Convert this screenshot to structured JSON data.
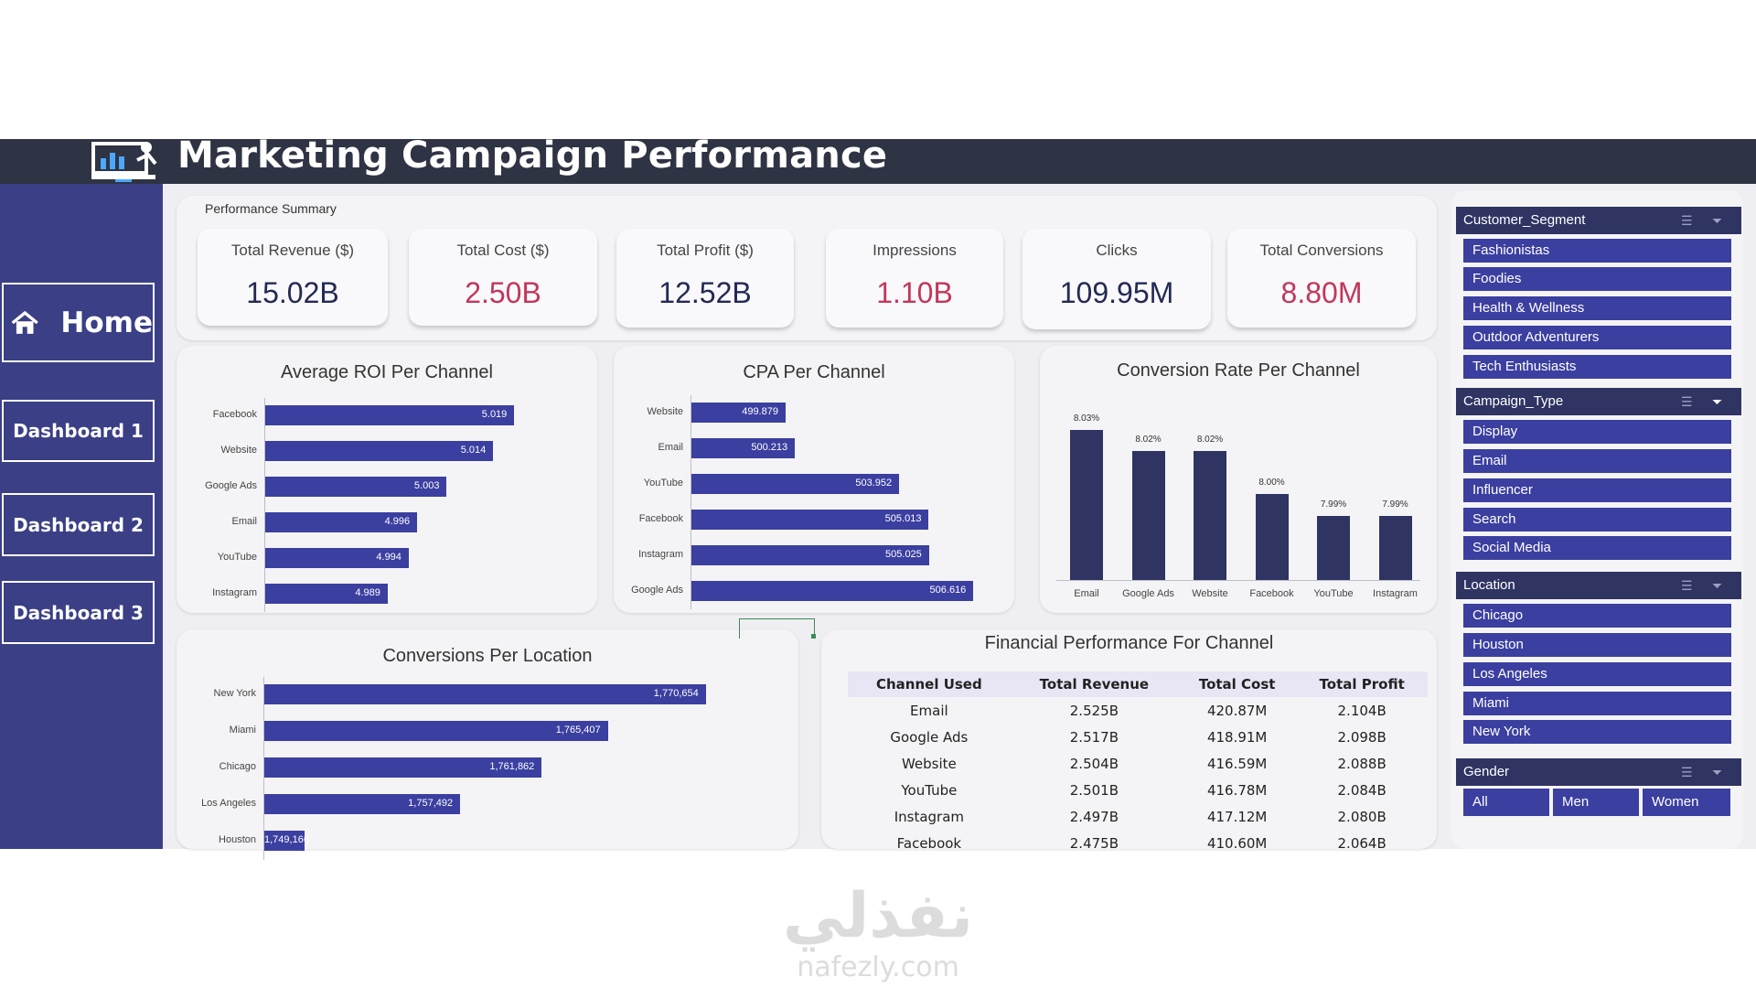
{
  "header": {
    "title": "Marketing Campaign Performance"
  },
  "nav": {
    "home": "Home",
    "dashboard1": "Dashboard 1",
    "dashboard2": "Dashboard 2",
    "dashboard3": "Dashboard 3"
  },
  "summary": {
    "title": "Performance Summary",
    "kpis": [
      {
        "label": "Total Revenue ($)",
        "value": "15.02B"
      },
      {
        "label": "Total Cost ($)",
        "value": "2.50B"
      },
      {
        "label": "Total Profit ($)",
        "value": "12.52B"
      },
      {
        "label": "Impressions",
        "value": "1.10B"
      },
      {
        "label": "Clicks",
        "value": "109.95M"
      },
      {
        "label": "Total Conversions",
        "value": "8.80M"
      }
    ]
  },
  "colors": {
    "bar": "#3b3fa0",
    "bar_dark": "#2f3463",
    "header": "#2f3444",
    "sidebar": "#3a3f86",
    "red": "#c2375a"
  },
  "chart_data": [
    {
      "type": "bar",
      "orientation": "horizontal",
      "title": "Average ROI Per Channel",
      "categories": [
        "Facebook",
        "Website",
        "Google Ads",
        "Email",
        "YouTube",
        "Instagram"
      ],
      "values": [
        5.019,
        5.014,
        5.003,
        4.996,
        4.994,
        4.989
      ],
      "labels": [
        "5.019",
        "5.014",
        "5.003",
        "4.996",
        "4.994",
        "4.989"
      ],
      "xlim": [
        4.96,
        5.025
      ]
    },
    {
      "type": "bar",
      "orientation": "horizontal",
      "title": "CPA Per Channel",
      "categories": [
        "Website",
        "Email",
        "YouTube",
        "Facebook",
        "Instagram",
        "Google Ads"
      ],
      "values": [
        499.879,
        500.213,
        503.952,
        505.013,
        505.025,
        506.616
      ],
      "labels": [
        "499.879",
        "500.213",
        "503.952",
        "505.013",
        "505.025",
        "506.616"
      ],
      "xlim": [
        496.5,
        507
      ]
    },
    {
      "type": "bar",
      "orientation": "vertical",
      "title": "Conversion Rate Per Channel",
      "categories": [
        "Email",
        "Google Ads",
        "Website",
        "Facebook",
        "YouTube",
        "Instagram"
      ],
      "values": [
        8.03,
        8.02,
        8.02,
        8.0,
        7.99,
        7.99
      ],
      "labels": [
        "8.03%",
        "8.02%",
        "8.02%",
        "8.00%",
        "7.99%",
        "7.99%"
      ],
      "ylim": [
        7.96,
        8.035
      ]
    },
    {
      "type": "bar",
      "orientation": "horizontal",
      "title": "Conversions Per Location",
      "categories": [
        "New York",
        "Miami",
        "Chicago",
        "Los Angeles",
        "Houston"
      ],
      "values": [
        1770654,
        1765407,
        1761862,
        1757492,
        1749166
      ],
      "labels": [
        "1,770,654",
        "1,765,407",
        "1,761,862",
        "1,757,492",
        "1,749,166"
      ],
      "xlim": [
        1747000,
        1771500
      ]
    }
  ],
  "financial": {
    "title": "Financial Performance For Channel",
    "columns": [
      "Channel Used",
      "Total Revenue",
      "Total Cost",
      "Total Profit"
    ],
    "rows": [
      [
        "Email",
        "2.525B",
        "420.87M",
        "2.104B"
      ],
      [
        "Google Ads",
        "2.517B",
        "418.91M",
        "2.098B"
      ],
      [
        "Website",
        "2.504B",
        "416.59M",
        "2.088B"
      ],
      [
        "YouTube",
        "2.501B",
        "416.78M",
        "2.084B"
      ],
      [
        "Instagram",
        "2.497B",
        "417.12M",
        "2.080B"
      ],
      [
        "Facebook",
        "2.475B",
        "410.60M",
        "2.064B"
      ]
    ]
  },
  "slicers": {
    "customer_segment": {
      "title": "Customer_Segment",
      "items": [
        "Fashionistas",
        "Foodies",
        "Health & Wellness",
        "Outdoor Adventurers",
        "Tech Enthusiasts"
      ]
    },
    "campaign_type": {
      "title": "Campaign_Type",
      "items": [
        "Display",
        "Email",
        "Influencer",
        "Search",
        "Social Media"
      ]
    },
    "location": {
      "title": "Location",
      "items": [
        "Chicago",
        "Houston",
        "Los Angeles",
        "Miami",
        "New York"
      ]
    },
    "gender": {
      "title": "Gender",
      "items": [
        "All",
        "Men",
        "Women"
      ]
    }
  },
  "watermark": {
    "arabic": "نفذلي",
    "latin": "nafezly.com"
  }
}
